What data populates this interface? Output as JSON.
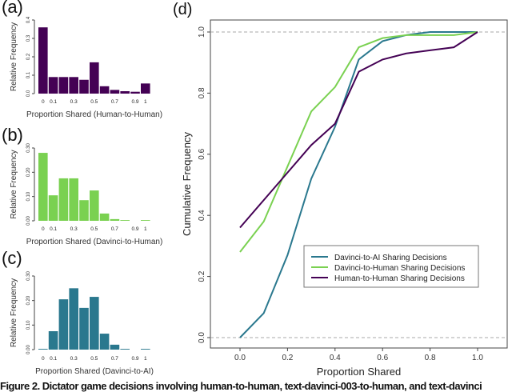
{
  "caption": "Figure 2. Dictator game decisions involving human-to-human, text-davinci-003-to-human, and text-davinci",
  "chart_data": [
    {
      "panel": "(a)",
      "type": "bar",
      "categories": [
        "0",
        "0.1",
        "0.2",
        "0.3",
        "0.4",
        "0.5",
        "0.6",
        "0.7",
        "0.8",
        "0.9",
        "1"
      ],
      "tick_labels": [
        "0",
        "0.1",
        "0.3",
        "0.5",
        "0.7",
        "0.9",
        "1"
      ],
      "values": [
        0.36,
        0.09,
        0.09,
        0.09,
        0.075,
        0.17,
        0.04,
        0.02,
        0.013,
        0.01,
        0.055
      ],
      "xlabel": "Proportion Shared (Human-to-Human)",
      "ylabel": "Relative Frequency",
      "yticks": [
        "0.0",
        "0.1",
        "0.2",
        "0.3",
        "0.4"
      ],
      "ylim": [
        0,
        0.4
      ],
      "color": "#440154"
    },
    {
      "panel": "(b)",
      "type": "bar",
      "categories": [
        "0",
        "0.1",
        "0.2",
        "0.3",
        "0.4",
        "0.5",
        "0.6",
        "0.7",
        "0.8",
        "0.9",
        "1"
      ],
      "tick_labels": [
        "0",
        "0.1",
        "0.3",
        "0.5",
        "0.7",
        "0.9",
        "1"
      ],
      "values": [
        0.28,
        0.105,
        0.175,
        0.175,
        0.085,
        0.125,
        0.03,
        0.007,
        0.003,
        0,
        0.003
      ],
      "xlabel": "Proportion Shared  (Davinci-to-Human)",
      "ylabel": "Relative Frequency",
      "yticks": [
        "0.00",
        "0.10",
        "0.20",
        "0.30"
      ],
      "ylim": [
        0,
        0.3
      ],
      "color": "#7ad151"
    },
    {
      "panel": "(c)",
      "type": "bar",
      "categories": [
        "0",
        "0.1",
        "0.2",
        "0.3",
        "0.4",
        "0.5",
        "0.6",
        "0.7",
        "0.8",
        "0.9",
        "1"
      ],
      "tick_labels": [
        "0",
        "0.1",
        "0.3",
        "0.5",
        "0.7",
        "0.9",
        "1"
      ],
      "values": [
        0.003,
        0.075,
        0.205,
        0.25,
        0.17,
        0.215,
        0.065,
        0.02,
        0.003,
        0,
        0.003
      ],
      "xlabel": "Proportion Shared (Davinci-to-AI)",
      "ylabel": "Relative Frequency",
      "yticks": [
        "0.00",
        "0.10",
        "0.20",
        "0.30"
      ],
      "ylim": [
        0,
        0.3
      ],
      "color": "#2a788e"
    },
    {
      "panel": "(d)",
      "type": "line",
      "x": [
        0,
        0.1,
        0.2,
        0.3,
        0.4,
        0.5,
        0.6,
        0.7,
        0.8,
        0.9,
        1.0
      ],
      "series": [
        {
          "name": "Davinci-to-AI Sharing Decisions",
          "color": "#2a788e",
          "values": [
            0,
            0.08,
            0.27,
            0.52,
            0.69,
            0.91,
            0.97,
            0.99,
            1.0,
            1.0,
            1.0
          ]
        },
        {
          "name": "Davinci-to-Human Sharing Decisions",
          "color": "#7ad151",
          "values": [
            0.28,
            0.38,
            0.56,
            0.74,
            0.82,
            0.95,
            0.98,
            0.99,
            0.99,
            0.99,
            1.0
          ]
        },
        {
          "name": "Human-to-Human Sharing Decisions",
          "color": "#440154",
          "values": [
            0.36,
            0.45,
            0.54,
            0.63,
            0.7,
            0.87,
            0.91,
            0.93,
            0.94,
            0.95,
            1.0
          ]
        }
      ],
      "xlabel": "Proportion Shared",
      "ylabel": "Cumulative Frequency",
      "xticks": [
        "0.0",
        "0.2",
        "0.4",
        "0.6",
        "0.8",
        "1.0"
      ],
      "yticks": [
        "0.0",
        "0.2",
        "0.4",
        "0.6",
        "0.8",
        "1.0"
      ],
      "xlim": [
        -0.12,
        1.12
      ],
      "ylim": [
        -0.03,
        1.06
      ],
      "reference_lines": [
        0,
        1
      ],
      "legend_position": "lower-right"
    }
  ]
}
